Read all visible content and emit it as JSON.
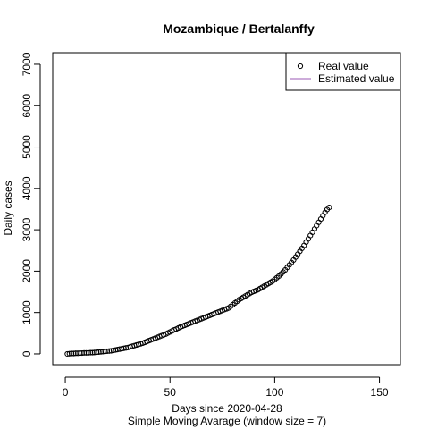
{
  "chart_data": {
    "type": "scatter",
    "title": "Mozambique / Bertalanffy",
    "xlabel": "Days since 2020-04-28",
    "subtitle": "Simple Moving Avarage (window size = 7)",
    "ylabel": "Daily cases",
    "xlim": [
      -6,
      160
    ],
    "ylim": [
      -260,
      7280
    ],
    "x_ticks": [
      0,
      50,
      100,
      150
    ],
    "y_ticks": [
      0,
      1000,
      2000,
      3000,
      4000,
      5000,
      6000,
      7000
    ],
    "x_tick_labels": [
      "0",
      "50",
      "100",
      "150"
    ],
    "y_tick_labels": [
      "0",
      "1000",
      "2000",
      "3000",
      "4000",
      "5000",
      "6000",
      "7000"
    ],
    "grid": false,
    "legend": {
      "position": "top-right",
      "entries": [
        {
          "label": "Real value",
          "marker": "open-circle",
          "color": "#000000"
        },
        {
          "label": "Estimated value",
          "marker": "line",
          "color": "#9b59b6"
        }
      ]
    },
    "series": [
      {
        "name": "Real value",
        "color": "#000000",
        "marker": "open-circle",
        "points_x": [
          1,
          2,
          3,
          4,
          5,
          6,
          7,
          8,
          9,
          10,
          11,
          12,
          13,
          14,
          15,
          16,
          17,
          18,
          19,
          20,
          21,
          22,
          23,
          24,
          25,
          26,
          27,
          28,
          29,
          30,
          31,
          32,
          33,
          34,
          35,
          36,
          37,
          38,
          39,
          40,
          41,
          42,
          43,
          44,
          45,
          46,
          47,
          48,
          49,
          50,
          51,
          52,
          53,
          54,
          55,
          56,
          57,
          58,
          59,
          60,
          61,
          62,
          63,
          64,
          65,
          66,
          67,
          68,
          69,
          70,
          71,
          72,
          73,
          74,
          75,
          76,
          77,
          78,
          79,
          80,
          81,
          82,
          83,
          84,
          85,
          86,
          87,
          88,
          89,
          90,
          91,
          92,
          93,
          94,
          95,
          96,
          97,
          98,
          99,
          100,
          101,
          102,
          103,
          104,
          105,
          106,
          107,
          108,
          109,
          110,
          111,
          112,
          113,
          114,
          115,
          116,
          117,
          118,
          119,
          120,
          121,
          122,
          123,
          124,
          125,
          126
        ],
        "points_y": [
          0,
          5,
          10,
          10,
          15,
          15,
          20,
          20,
          25,
          25,
          25,
          30,
          30,
          35,
          40,
          45,
          50,
          55,
          60,
          65,
          70,
          75,
          85,
          95,
          105,
          115,
          125,
          135,
          145,
          155,
          170,
          185,
          200,
          215,
          230,
          245,
          260,
          280,
          300,
          320,
          340,
          360,
          380,
          400,
          420,
          440,
          460,
          480,
          505,
          530,
          555,
          580,
          600,
          625,
          650,
          670,
          690,
          710,
          730,
          750,
          770,
          790,
          810,
          830,
          850,
          870,
          890,
          910,
          930,
          950,
          970,
          990,
          1010,
          1030,
          1050,
          1070,
          1090,
          1110,
          1150,
          1190,
          1230,
          1270,
          1310,
          1340,
          1370,
          1400,
          1430,
          1460,
          1490,
          1510,
          1530,
          1550,
          1580,
          1610,
          1640,
          1670,
          1700,
          1730,
          1760,
          1800,
          1840,
          1880,
          1930,
          1980,
          2030,
          2090,
          2150,
          2210,
          2270,
          2340,
          2410,
          2480,
          2550,
          2620,
          2700,
          2780,
          2860,
          2940,
          3020,
          3100,
          3180,
          3260,
          3340,
          3420,
          3490,
          3540
        ]
      },
      {
        "name": "Estimated value",
        "color": "#9b59b6",
        "marker": "line",
        "points_x": [],
        "points_y": []
      }
    ]
  }
}
